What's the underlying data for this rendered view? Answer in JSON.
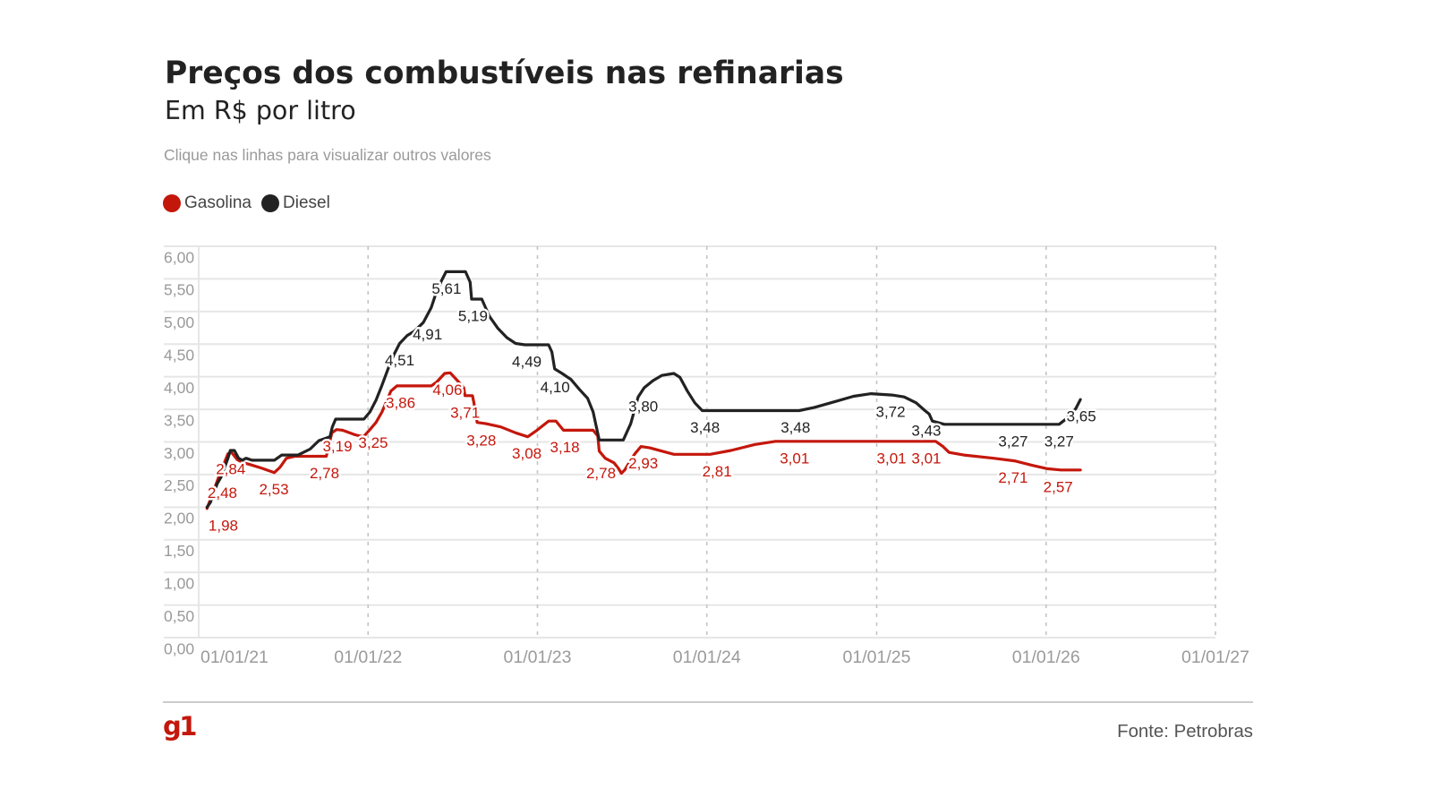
{
  "header": {
    "note": "Clique nas linhas para visualizar outros valores"
  },
  "legend": [
    {
      "label": "Gasolina",
      "series": "Gasolina"
    },
    {
      "label": "Diesel",
      "series": "Diesel"
    }
  ],
  "footer": {
    "logo_text": "g1",
    "source": "Fonte: Petrobras"
  },
  "colors": {
    "brand": "#c4170c",
    "gasolina": "#c4170c",
    "diesel": "#222222"
  },
  "chart_data": {
    "type": "line",
    "title": "Preços dos combustíveis nas refinarias",
    "subtitle": "Em R$ por litro",
    "xlabel": "",
    "ylabel": "R$ por litro",
    "x_type": "date",
    "xlim": [
      "2021-01-01",
      "2027-01-01"
    ],
    "ylim": [
      0,
      6
    ],
    "grid": {
      "horizontal": true,
      "vertical": "dashed"
    },
    "legend_position": "top-left",
    "y_ticks": [
      {
        "value": 0,
        "label": "0,00"
      },
      {
        "value": 0.5,
        "label": "0,50"
      },
      {
        "value": 1,
        "label": "1,00"
      },
      {
        "value": 1.5,
        "label": "1,50"
      },
      {
        "value": 2,
        "label": "2,00"
      },
      {
        "value": 2.5,
        "label": "2,50"
      },
      {
        "value": 3,
        "label": "3,00"
      },
      {
        "value": 3.5,
        "label": "3,50"
      },
      {
        "value": 4,
        "label": "4,00"
      },
      {
        "value": 4.5,
        "label": "4,50"
      },
      {
        "value": 5,
        "label": "5,00"
      },
      {
        "value": 5.5,
        "label": "5,50"
      },
      {
        "value": 6,
        "label": "6,00"
      }
    ],
    "x_ticks": [
      {
        "date": "2021-01-01",
        "label": "01/01/21"
      },
      {
        "date": "2022-01-01",
        "label": "01/01/22"
      },
      {
        "date": "2023-01-01",
        "label": "01/01/23"
      },
      {
        "date": "2024-01-01",
        "label": "01/01/24"
      },
      {
        "date": "2025-01-01",
        "label": "01/01/25"
      },
      {
        "date": "2026-01-01",
        "label": "01/01/26"
      },
      {
        "date": "2027-01-01",
        "label": "01/01/27"
      }
    ],
    "series": [
      {
        "name": "Gasolina",
        "color": "#c4170c",
        "points": [
          [
            "2021-01-19",
            1.98
          ],
          [
            "2021-02-14",
            2.48
          ],
          [
            "2021-03-05",
            2.82
          ],
          [
            "2021-03-13",
            2.84
          ],
          [
            "2021-03-25",
            2.73
          ],
          [
            "2021-04-07",
            2.68
          ],
          [
            "2021-04-19",
            2.66
          ],
          [
            "2021-05-16",
            2.6
          ],
          [
            "2021-06-13",
            2.53
          ],
          [
            "2021-06-25",
            2.61
          ],
          [
            "2021-07-09",
            2.75
          ],
          [
            "2021-07-28",
            2.78
          ],
          [
            "2021-10-03",
            2.78
          ],
          [
            "2021-10-15",
            3.14
          ],
          [
            "2021-10-25",
            3.19
          ],
          [
            "2021-11-07",
            3.18
          ],
          [
            "2021-12-04",
            3.11
          ],
          [
            "2021-12-22",
            3.08
          ],
          [
            "2022-01-05",
            3.19
          ],
          [
            "2022-01-18",
            3.3
          ],
          [
            "2022-01-31",
            3.46
          ],
          [
            "2022-02-19",
            3.78
          ],
          [
            "2022-03-04",
            3.86
          ],
          [
            "2022-05-17",
            3.86
          ],
          [
            "2022-05-29",
            3.92
          ],
          [
            "2022-06-15",
            4.05
          ],
          [
            "2022-06-27",
            4.06
          ],
          [
            "2022-07-10",
            3.96
          ],
          [
            "2022-07-26",
            3.83
          ],
          [
            "2022-07-29",
            3.71
          ],
          [
            "2022-08-14",
            3.71
          ],
          [
            "2022-08-19",
            3.53
          ],
          [
            "2022-08-24",
            3.3
          ],
          [
            "2022-09-12",
            3.28
          ],
          [
            "2022-10-14",
            3.23
          ],
          [
            "2022-11-15",
            3.14
          ],
          [
            "2022-12-11",
            3.08
          ],
          [
            "2022-12-31",
            3.18
          ],
          [
            "2023-01-25",
            3.32
          ],
          [
            "2023-02-10",
            3.32
          ],
          [
            "2023-02-26",
            3.18
          ],
          [
            "2023-05-01",
            3.18
          ],
          [
            "2023-05-11",
            3.09
          ],
          [
            "2023-05-14",
            2.86
          ],
          [
            "2023-05-27",
            2.75
          ],
          [
            "2023-06-15",
            2.68
          ],
          [
            "2023-06-25",
            2.59
          ],
          [
            "2023-07-01",
            2.52
          ],
          [
            "2023-07-08",
            2.57
          ],
          [
            "2023-07-19",
            2.7
          ],
          [
            "2023-07-30",
            2.82
          ],
          [
            "2023-08-12",
            2.93
          ],
          [
            "2023-08-31",
            2.91
          ],
          [
            "2023-09-26",
            2.86
          ],
          [
            "2023-10-22",
            2.81
          ],
          [
            "2024-01-08",
            2.81
          ],
          [
            "2024-02-22",
            2.87
          ],
          [
            "2024-04-13",
            2.96
          ],
          [
            "2024-05-28",
            3.01
          ],
          [
            "2025-05-08",
            3.01
          ],
          [
            "2025-05-24",
            2.93
          ],
          [
            "2025-06-06",
            2.84
          ],
          [
            "2025-07-08",
            2.8
          ],
          [
            "2025-09-10",
            2.75
          ],
          [
            "2025-10-25",
            2.71
          ],
          [
            "2025-12-03",
            2.64
          ],
          [
            "2026-01-04",
            2.59
          ],
          [
            "2026-02-02",
            2.57
          ],
          [
            "2026-03-16",
            2.57
          ]
        ]
      },
      {
        "name": "Diesel",
        "color": "#222222",
        "points": [
          [
            "2021-01-19",
            2.0
          ],
          [
            "2021-01-26",
            2.07
          ],
          [
            "2021-02-10",
            2.36
          ],
          [
            "2021-02-18",
            2.46
          ],
          [
            "2021-03-05",
            2.75
          ],
          [
            "2021-03-10",
            2.87
          ],
          [
            "2021-03-19",
            2.87
          ],
          [
            "2021-03-28",
            2.75
          ],
          [
            "2021-04-05",
            2.72
          ],
          [
            "2021-04-13",
            2.75
          ],
          [
            "2021-04-26",
            2.72
          ],
          [
            "2021-06-13",
            2.72
          ],
          [
            "2021-06-29",
            2.8
          ],
          [
            "2021-08-03",
            2.8
          ],
          [
            "2021-08-29",
            2.89
          ],
          [
            "2021-09-17",
            3.02
          ],
          [
            "2021-10-03",
            3.06
          ],
          [
            "2021-10-11",
            3.08
          ],
          [
            "2021-10-16",
            3.23
          ],
          [
            "2021-10-23",
            3.35
          ],
          [
            "2021-12-23",
            3.35
          ],
          [
            "2022-01-05",
            3.46
          ],
          [
            "2022-01-18",
            3.64
          ],
          [
            "2022-01-31",
            3.87
          ],
          [
            "2022-02-12",
            4.1
          ],
          [
            "2022-02-25",
            4.33
          ],
          [
            "2022-03-10",
            4.51
          ],
          [
            "2022-03-26",
            4.63
          ],
          [
            "2022-04-11",
            4.7
          ],
          [
            "2022-04-30",
            4.83
          ],
          [
            "2022-05-17",
            5.06
          ],
          [
            "2022-05-26",
            5.25
          ],
          [
            "2022-06-08",
            5.47
          ],
          [
            "2022-06-18",
            5.61
          ],
          [
            "2022-07-30",
            5.61
          ],
          [
            "2022-08-09",
            5.45
          ],
          [
            "2022-08-12",
            5.19
          ],
          [
            "2022-09-03",
            5.19
          ],
          [
            "2022-09-19",
            4.93
          ],
          [
            "2022-10-08",
            4.74
          ],
          [
            "2022-10-27",
            4.6
          ],
          [
            "2022-11-15",
            4.51
          ],
          [
            "2022-12-05",
            4.49
          ],
          [
            "2023-01-25",
            4.49
          ],
          [
            "2023-02-01",
            4.38
          ],
          [
            "2023-02-07",
            4.12
          ],
          [
            "2023-02-23",
            4.05
          ],
          [
            "2023-03-14",
            3.96
          ],
          [
            "2023-04-02",
            3.8
          ],
          [
            "2023-04-19",
            3.67
          ],
          [
            "2023-05-01",
            3.46
          ],
          [
            "2023-05-08",
            3.23
          ],
          [
            "2023-05-14",
            3.03
          ],
          [
            "2023-07-05",
            3.03
          ],
          [
            "2023-07-21",
            3.28
          ],
          [
            "2023-08-06",
            3.69
          ],
          [
            "2023-08-19",
            3.83
          ],
          [
            "2023-09-07",
            3.94
          ],
          [
            "2023-09-26",
            4.02
          ],
          [
            "2023-10-22",
            4.05
          ],
          [
            "2023-11-04",
            3.99
          ],
          [
            "2023-11-20",
            3.78
          ],
          [
            "2023-12-06",
            3.6
          ],
          [
            "2023-12-22",
            3.48
          ],
          [
            "2024-07-18",
            3.48
          ],
          [
            "2024-08-20",
            3.53
          ],
          [
            "2024-10-04",
            3.62
          ],
          [
            "2024-11-12",
            3.7
          ],
          [
            "2024-12-20",
            3.74
          ],
          [
            "2025-02-03",
            3.72
          ],
          [
            "2025-03-01",
            3.69
          ],
          [
            "2025-03-27",
            3.6
          ],
          [
            "2025-04-15",
            3.48
          ],
          [
            "2025-04-24",
            3.43
          ],
          [
            "2025-05-01",
            3.32
          ],
          [
            "2025-05-27",
            3.27
          ],
          [
            "2026-01-29",
            3.27
          ],
          [
            "2026-02-11",
            3.34
          ],
          [
            "2026-03-06",
            3.51
          ],
          [
            "2026-03-16",
            3.65
          ]
        ]
      }
    ],
    "annotations": [
      {
        "series": "Gasolina",
        "date": "2021-02-23",
        "value": 1.98,
        "text": "1,98",
        "position": "below"
      },
      {
        "series": "Gasolina",
        "date": "2021-02-21",
        "value": 2.48,
        "text": "2,48",
        "position": "below"
      },
      {
        "series": "Gasolina",
        "date": "2021-03-11",
        "value": 2.84,
        "text": "2,84",
        "position": "below"
      },
      {
        "series": "Gasolina",
        "date": "2021-06-12",
        "value": 2.53,
        "text": "2,53",
        "position": "below"
      },
      {
        "series": "Gasolina",
        "date": "2021-09-29",
        "value": 2.78,
        "text": "2,78",
        "position": "below"
      },
      {
        "series": "Gasolina",
        "date": "2021-10-27",
        "value": 3.19,
        "text": "3,19",
        "position": "below"
      },
      {
        "series": "Gasolina",
        "date": "2022-01-12",
        "value": 3.25,
        "text": "3,25",
        "position": "below"
      },
      {
        "series": "Gasolina",
        "date": "2022-03-12",
        "value": 3.86,
        "text": "3,86",
        "position": "below"
      },
      {
        "series": "Gasolina",
        "date": "2022-06-21",
        "value": 4.06,
        "text": "4,06",
        "position": "below"
      },
      {
        "series": "Gasolina",
        "date": "2022-07-29",
        "value": 3.71,
        "text": "3,71",
        "position": "below"
      },
      {
        "series": "Gasolina",
        "date": "2022-09-02",
        "value": 3.28,
        "text": "3,28",
        "position": "below"
      },
      {
        "series": "Gasolina",
        "date": "2022-12-09",
        "value": 3.08,
        "text": "3,08",
        "position": "below"
      },
      {
        "series": "Gasolina",
        "date": "2023-03-01",
        "value": 3.18,
        "text": "3,18",
        "position": "below"
      },
      {
        "series": "Gasolina",
        "date": "2023-05-18",
        "value": 2.78,
        "text": "2,78",
        "position": "below"
      },
      {
        "series": "Gasolina",
        "date": "2023-08-17",
        "value": 2.93,
        "text": "2,93",
        "position": "below"
      },
      {
        "series": "Gasolina",
        "date": "2024-01-23",
        "value": 2.81,
        "text": "2,81",
        "position": "below"
      },
      {
        "series": "Gasolina",
        "date": "2024-07-08",
        "value": 3.01,
        "text": "3,01",
        "position": "below"
      },
      {
        "series": "Gasolina",
        "date": "2025-02-02",
        "value": 3.01,
        "text": "3,01",
        "position": "below"
      },
      {
        "series": "Gasolina",
        "date": "2025-04-18",
        "value": 3.01,
        "text": "3,01",
        "position": "below"
      },
      {
        "series": "Gasolina",
        "date": "2025-10-22",
        "value": 2.71,
        "text": "2,71",
        "position": "below"
      },
      {
        "series": "Gasolina",
        "date": "2026-01-27",
        "value": 2.57,
        "text": "2,57",
        "position": "below"
      },
      {
        "series": "Diesel",
        "date": "2022-03-10",
        "value": 4.51,
        "text": "4,51",
        "position": "below"
      },
      {
        "series": "Diesel",
        "date": "2022-05-09",
        "value": 4.91,
        "text": "4,91",
        "position": "below"
      },
      {
        "series": "Diesel",
        "date": "2022-06-19",
        "value": 5.61,
        "text": "5,61",
        "position": "below"
      },
      {
        "series": "Diesel",
        "date": "2022-08-15",
        "value": 5.19,
        "text": "5,19",
        "position": "below"
      },
      {
        "series": "Diesel",
        "date": "2022-12-09",
        "value": 4.49,
        "text": "4,49",
        "position": "below"
      },
      {
        "series": "Diesel",
        "date": "2023-02-08",
        "value": 4.1,
        "text": "4,10",
        "position": "below"
      },
      {
        "series": "Diesel",
        "date": "2023-08-17",
        "value": 3.8,
        "text": "3,80",
        "position": "below"
      },
      {
        "series": "Diesel",
        "date": "2023-12-28",
        "value": 3.48,
        "text": "3,48",
        "position": "below"
      },
      {
        "series": "Diesel",
        "date": "2024-07-10",
        "value": 3.48,
        "text": "3,48",
        "position": "below"
      },
      {
        "series": "Diesel",
        "date": "2025-01-31",
        "value": 3.72,
        "text": "3,72",
        "position": "below"
      },
      {
        "series": "Diesel",
        "date": "2025-04-18",
        "value": 3.43,
        "text": "3,43",
        "position": "below"
      },
      {
        "series": "Diesel",
        "date": "2025-10-22",
        "value": 3.27,
        "text": "3,27",
        "position": "below"
      },
      {
        "series": "Diesel",
        "date": "2026-01-29",
        "value": 3.27,
        "text": "3,27",
        "position": "below"
      },
      {
        "series": "Diesel",
        "date": "2026-03-18",
        "value": 3.65,
        "text": "3,65",
        "position": "below"
      }
    ]
  }
}
